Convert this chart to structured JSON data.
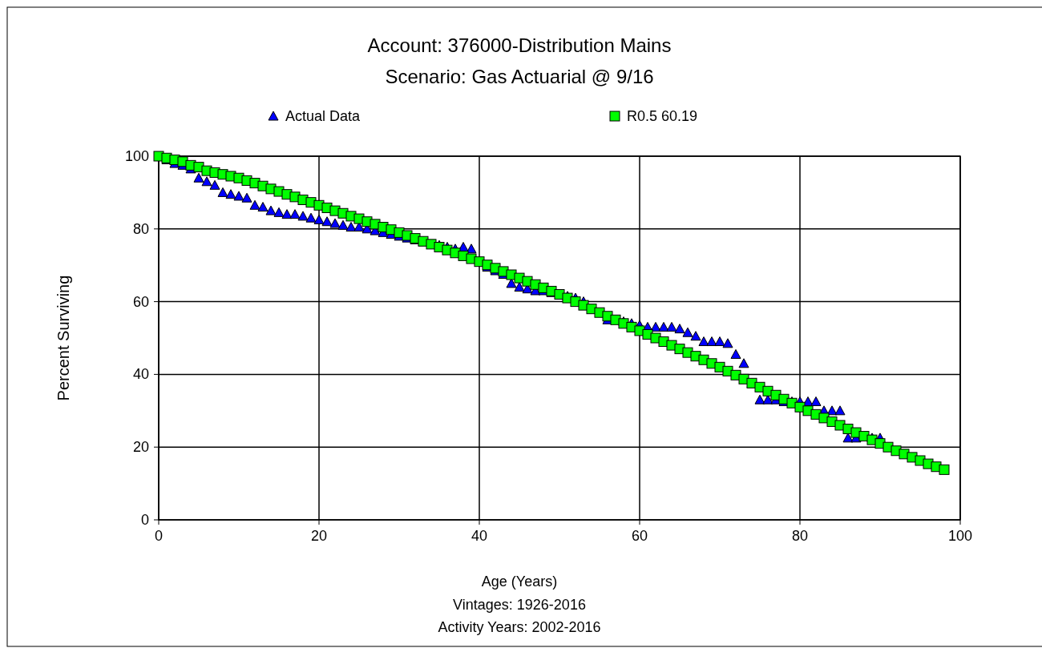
{
  "chart_data": {
    "type": "scatter",
    "title": "Account: 376000-Distribution Mains",
    "subtitle": "Scenario: Gas Actuarial @ 9/16",
    "xlabel": "Age (Years)",
    "ylabel": "Percent Surviving",
    "annotations": [
      "Vintages: 1926-2016",
      "Activity Years: 2002-2016"
    ],
    "xlim": [
      0,
      100
    ],
    "ylim": [
      0,
      100
    ],
    "xticks": [
      0,
      20,
      40,
      60,
      80,
      100
    ],
    "yticks": [
      0,
      20,
      40,
      60,
      80,
      100
    ],
    "grid": true,
    "legend": "top",
    "series": [
      {
        "name": "Actual Data",
        "color": "#0000ff",
        "marker": "triangle",
        "x": [
          1,
          2,
          3,
          4,
          5,
          6,
          7,
          8,
          9,
          10,
          11,
          12,
          13,
          14,
          15,
          16,
          17,
          18,
          19,
          20,
          21,
          22,
          23,
          24,
          25,
          26,
          27,
          28,
          29,
          30,
          31,
          32,
          33,
          35,
          36,
          37,
          38,
          39,
          41,
          42,
          43,
          44,
          45,
          46,
          47,
          48,
          49,
          51,
          52,
          53,
          56,
          58,
          59,
          60,
          61,
          62,
          63,
          64,
          65,
          66,
          67,
          68,
          69,
          70,
          71,
          72,
          73,
          74,
          75,
          76,
          77,
          78,
          79,
          80,
          81,
          82,
          83,
          84,
          85,
          86,
          87,
          89,
          90
        ],
        "values": [
          99,
          98,
          97.5,
          96.5,
          94,
          93,
          92,
          90,
          89.5,
          89,
          88.5,
          86.5,
          86,
          85,
          84.5,
          84,
          84,
          83.5,
          83,
          82.5,
          82,
          81.5,
          81,
          80.5,
          80.5,
          80,
          79.5,
          79,
          78.5,
          78,
          77.5,
          77,
          76.5,
          75.5,
          75,
          74.5,
          75,
          74.5,
          69.5,
          68.5,
          67.5,
          65,
          64,
          63.5,
          63,
          63,
          62.5,
          61.5,
          61,
          60,
          55,
          54.5,
          54,
          53.5,
          53,
          53,
          53,
          53,
          52.5,
          51.5,
          50.5,
          49,
          49,
          49,
          48.5,
          45.5,
          43,
          37.5,
          33,
          33,
          33,
          32.5,
          32.5,
          32.5,
          32.5,
          32.5,
          30,
          30,
          30,
          22.5,
          22.5,
          22.5,
          22.5
        ]
      },
      {
        "name": "R0.5 60.19",
        "color": "#00ff00",
        "marker": "square",
        "x": [
          0,
          1,
          2,
          3,
          4,
          5,
          6,
          7,
          8,
          9,
          10,
          11,
          12,
          13,
          14,
          15,
          16,
          17,
          18,
          19,
          20,
          21,
          22,
          23,
          24,
          25,
          26,
          27,
          28,
          29,
          30,
          31,
          32,
          33,
          34,
          35,
          36,
          37,
          38,
          39,
          40,
          41,
          42,
          43,
          44,
          45,
          46,
          47,
          48,
          49,
          50,
          51,
          52,
          53,
          54,
          55,
          56,
          57,
          58,
          59,
          60,
          61,
          62,
          63,
          64,
          65,
          66,
          67,
          68,
          69,
          70,
          71,
          72,
          73,
          74,
          75,
          76,
          77,
          78,
          79,
          80,
          81,
          82,
          83,
          84,
          85,
          86,
          87,
          88,
          89,
          90,
          91,
          92,
          93,
          94,
          95,
          96,
          97,
          98
        ],
        "values": [
          100,
          99.5,
          99,
          98.5,
          97.5,
          97,
          96,
          95.5,
          95,
          94.5,
          94,
          93.3,
          92.6,
          91.8,
          91,
          90.3,
          89.5,
          88.8,
          88,
          87.3,
          86.5,
          85.8,
          85,
          84.3,
          83.5,
          82.8,
          82,
          81.3,
          80.5,
          79.8,
          79,
          78.2,
          77.4,
          76.6,
          75.8,
          75,
          74.2,
          73.4,
          72.6,
          71.8,
          71,
          70.1,
          69.2,
          68.3,
          67.4,
          66.5,
          65.6,
          64.7,
          63.8,
          62.9,
          62,
          61,
          60,
          59,
          58,
          57,
          56,
          55,
          54,
          53,
          52,
          51,
          50,
          49,
          48,
          47,
          46,
          45,
          44,
          43,
          42,
          40.9,
          39.8,
          38.7,
          37.6,
          36.5,
          35.4,
          34.3,
          33.2,
          32.1,
          31,
          30,
          29,
          28,
          27,
          26,
          25,
          24,
          23,
          22,
          21,
          20,
          19,
          18.1,
          17.2,
          16.3,
          15.4,
          14.6,
          13.8
        ]
      }
    ]
  }
}
